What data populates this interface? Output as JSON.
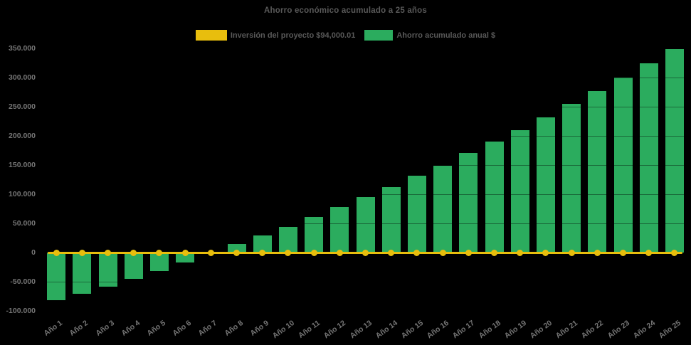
{
  "page": {
    "background": "#000000"
  },
  "title": "Ahorro económico acumulado a 25 años",
  "legend": {
    "items": [
      {
        "label": "Inversión del proyecto $94,000.01",
        "color": "#E8BE0D",
        "kind": "line-series"
      },
      {
        "label": "Ahorro acumulado anual $",
        "color": "#2BAC5E",
        "kind": "bar-series"
      }
    ]
  },
  "chart_data": {
    "type": "bar",
    "title": "Ahorro económico acumulado a 25 años",
    "xlabel": "",
    "ylabel": "",
    "legend_position": "top-center",
    "background": "#000000",
    "grid": "horizontal-subtle",
    "ylim": [
      -100000,
      350000
    ],
    "ytick_step": 50000,
    "yticks": [
      {
        "label": "350.000",
        "value": 350000
      },
      {
        "label": "300.000",
        "value": 300000
      },
      {
        "label": "250.000",
        "value": 250000
      },
      {
        "label": "200.000",
        "value": 200000
      },
      {
        "label": "150.000",
        "value": 150000
      },
      {
        "label": "100.000",
        "value": 100000
      },
      {
        "label": "50.000",
        "value": 50000
      },
      {
        "label": "0",
        "value": 0
      },
      {
        "label": "-50.000",
        "value": -50000
      },
      {
        "label": "-100.000",
        "value": -100000
      }
    ],
    "categories": [
      "Año 1",
      "Año 2",
      "Año 3",
      "Año 4",
      "Año 5",
      "Año 6",
      "Año 7",
      "Año 8",
      "Año 9",
      "Año 10",
      "Año 11",
      "Año 12",
      "Año 13",
      "Año 14",
      "Año 15",
      "Año 16",
      "Año 17",
      "Año 18",
      "Año 19",
      "Año 20",
      "Año 21",
      "Año 22",
      "Año 23",
      "Año 24",
      "Año 25"
    ],
    "series": [
      {
        "name": "Ahorro acumulado anual $",
        "render": "bar",
        "color": "#2BAC5E",
        "values": [
          -81500,
          -70500,
          -58500,
          -44500,
          -31500,
          -17500,
          -1500,
          14500,
          29000,
          44500,
          61500,
          78000,
          95500,
          112500,
          131000,
          149000,
          170000,
          189500,
          210000,
          231500,
          254000,
          276000,
          299000,
          323500,
          348000
        ]
      },
      {
        "name": "Inversión del proyecto $94,000.01",
        "render": "line",
        "color": "#E8BE0D",
        "marker": "circle",
        "plotted_value": 0,
        "values": [
          0,
          0,
          0,
          0,
          0,
          0,
          0,
          0,
          0,
          0,
          0,
          0,
          0,
          0,
          0,
          0,
          0,
          0,
          0,
          0,
          0,
          0,
          0,
          0,
          0
        ]
      }
    ]
  }
}
